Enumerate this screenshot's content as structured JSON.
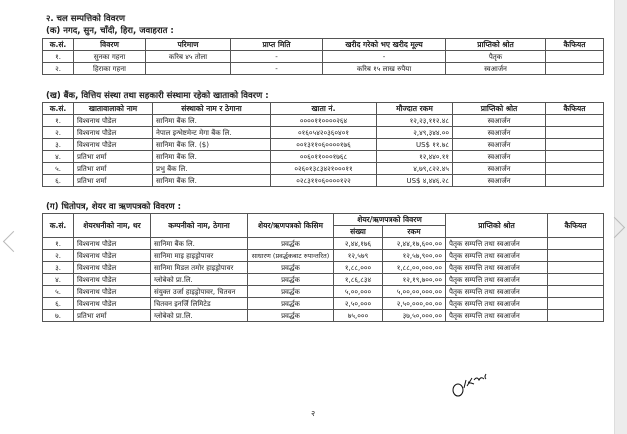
{
  "section_title": "२. चल सम्पत्तिको विवरण",
  "table_a": {
    "title": "(क) नगद, सुन, चाँदी, हिरा, जवाहरात :",
    "headers": [
      "क.सं.",
      "विवरण",
      "परिमाण",
      "प्राप्त मिति",
      "खरीद गरेको भए खरीद मूल्य",
      "प्राप्तिको श्रोत",
      "कैफियत"
    ],
    "rows": [
      [
        "१.",
        "सुनका गहना",
        "करिब ४५ तोला",
        "-",
        "-",
        "पैतृक",
        ""
      ],
      [
        "२.",
        "हिराका गहना",
        "",
        "-",
        "करिब १५ लाख रुपैया",
        "स्वआर्जन",
        ""
      ]
    ]
  },
  "table_b": {
    "title": "(ख) बैंक, वित्तिय संस्था तथा सहकारी संस्थामा रहेको खाताको विवरण :",
    "headers": [
      "क.सं.",
      "खातावालाको नाम",
      "संस्थाको नाम र ठेगाना",
      "खाता नं.",
      "मौज्दात रकम",
      "प्राप्तिको श्रोत",
      "कैफियत"
    ],
    "rows": [
      [
        "१.",
        "विश्वनाथ पौडेल",
        "सानिमा बैंक लि.",
        "००००११००००२६४",
        "१२,२३,११२.४८",
        "स्वआर्जन",
        ""
      ],
      [
        "२.",
        "विश्वनाथ पौडेल",
        "नेपाल इन्भेष्टमेन्ट मेगा बैंक लि.",
        "०१६०५४२०३६०४०१",
        "२,४९,३४४.००",
        "स्वआर्जन",
        ""
      ],
      [
        "३.",
        "विश्वनाथ पौडेल",
        "सानिमा बैंक लि. ($)",
        "००१३११०६००००१७६",
        "US$ ११.७८",
        "स्वआर्जन",
        ""
      ],
      [
        "४.",
        "प्रतिभा शर्मा",
        "सानिमा बैंक लि.",
        "००६०११०००१७६८",
        "१२,४४०.११",
        "स्वआर्जन",
        ""
      ],
      [
        "५.",
        "प्रतिभा शर्मा",
        "प्रभु बैंक लि.",
        "०२६०१३८३४२१०००११",
        "४,७९,८२२.४५",
        "स्वआर्जन",
        ""
      ],
      [
        "६.",
        "प्रतिभा शर्मा",
        "सानिमा बैंक लि.",
        "०२८३११०६००००१२२",
        "US$ ४,४४६.२८",
        "स्वआर्जन",
        ""
      ]
    ]
  },
  "table_c": {
    "title": "(ग) धितोपत्र, शेयर वा ऋणपत्रको विवरण :",
    "headers": [
      "क.सं.",
      "शेयरधनीको नाम, थर",
      "कम्पनीको नाम, ठेगाना",
      "शेयर/ऋणपत्रको किसिम",
      "शेयर/ऋणपत्रको विवरण",
      "प्राप्तिको श्रोत",
      "कैफियत"
    ],
    "subheaders": [
      "संख्या",
      "रकम"
    ],
    "rows": [
      [
        "१.",
        "विश्वनाथ पौडेल",
        "सानिमा बैंक लि.",
        "प्रवर्द्धक",
        "२,४४,१७६",
        "२,४४,१७,६००.००",
        "पैतृक सम्पत्ति तथा स्वआर्जन",
        ""
      ],
      [
        "२.",
        "विश्वनाथ पौडेल",
        "सानिमा माइ हाइड्रोपावर",
        "साधारण (प्रवर्द्धकबाट रुपान्तरित)",
        "१२,५७९",
        "१२,५७,९००.००",
        "पैतृक सम्पत्ति तथा स्वआर्जन",
        ""
      ],
      [
        "३.",
        "विश्वनाथ पौडेल",
        "सानिमा मिडल तमोर हाइड्रोपावर",
        "प्रवर्द्धक",
        "१,८८,०००",
        "१,८८,००,०००.००",
        "पैतृक सम्पत्ति तथा स्वआर्जन",
        ""
      ],
      [
        "४.",
        "विश्वनाथ पौडेल",
        "ग्लोबेको प्रा.लि.",
        "प्रवर्द्धक",
        "१,८६,८३४",
        "१२,१९,७००.००",
        "पैतृक सम्पत्ति तथा स्वआर्जन",
        ""
      ],
      [
        "५.",
        "विश्वनाथ पौडेल",
        "संयुक्त उर्जा हाइड्रोपावर, चितवन",
        "प्रवर्द्धक",
        "५,००,०००",
        "५,००,००,०००.००",
        "पैतृक सम्पत्ति तथा स्वआर्जन",
        ""
      ],
      [
        "६.",
        "विश्वनाथ पौडेल",
        "चितवन इनर्जि लिमिटेड",
        "प्रवर्द्धक",
        "२,५०,०००",
        "२,५०,०००,००.००",
        "पैतृक सम्पत्ति तथा स्वआर्जन",
        ""
      ],
      [
        "७.",
        "प्रतिभा शर्मा",
        "ग्लोबेको प्रा.लि.",
        "प्रवर्द्धक",
        "७५,०००",
        "३७,५०,०००.००",
        "पैतृक सम्पत्ति तथा स्वआर्जन",
        ""
      ]
    ]
  },
  "signature_text": "17/08",
  "page_number": "२"
}
